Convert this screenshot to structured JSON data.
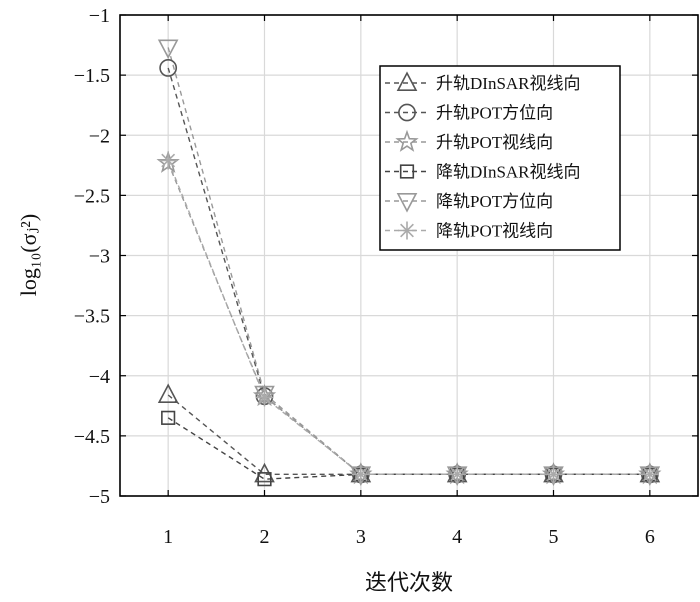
{
  "chart_data": {
    "type": "line",
    "x": [
      1,
      2,
      3,
      4,
      5,
      6
    ],
    "xticks": [
      "1",
      "2",
      "3",
      "4",
      "5",
      "6"
    ],
    "yticks": [
      "−1",
      "−1.5",
      "−2",
      "−2.5",
      "−3",
      "−3.5",
      "−4",
      "−4.5",
      "−5"
    ],
    "ytick_values": [
      -1,
      -1.5,
      -2,
      -2.5,
      -3,
      -3.5,
      -4,
      -4.5,
      -5
    ],
    "xlim": [
      0.5,
      6.5
    ],
    "ylim": [
      -5,
      -1
    ],
    "xlabel": "迭代次数",
    "ylabel": "log₁₀(σⱼ²)",
    "grid": true,
    "legend_position": "top-right",
    "series": [
      {
        "name": "升轨DInSAR视线向",
        "marker": "triangle-up",
        "color": "#555555",
        "values": [
          -4.16,
          -4.82,
          -4.82,
          -4.82,
          -4.82,
          -4.82
        ]
      },
      {
        "name": "升轨POT方位向",
        "marker": "circle",
        "color": "#555555",
        "values": [
          -1.44,
          -4.17,
          -4.82,
          -4.82,
          -4.82,
          -4.82
        ]
      },
      {
        "name": "升轨POT视线向",
        "marker": "star",
        "color": "#999999",
        "values": [
          -2.23,
          -4.17,
          -4.82,
          -4.82,
          -4.82,
          -4.82
        ]
      },
      {
        "name": "降轨DInSAR视线向",
        "marker": "square",
        "color": "#444444",
        "values": [
          -4.35,
          -4.86,
          -4.82,
          -4.82,
          -4.82,
          -4.82
        ]
      },
      {
        "name": "降轨POT方位向",
        "marker": "triangle-down",
        "color": "#999999",
        "values": [
          -1.27,
          -4.15,
          -4.82,
          -4.82,
          -4.82,
          -4.82
        ]
      },
      {
        "name": "降轨POT视线向",
        "marker": "asterisk",
        "color": "#aaaaaa",
        "values": [
          -2.21,
          -4.18,
          -4.82,
          -4.82,
          -4.82,
          -4.82
        ]
      }
    ]
  }
}
